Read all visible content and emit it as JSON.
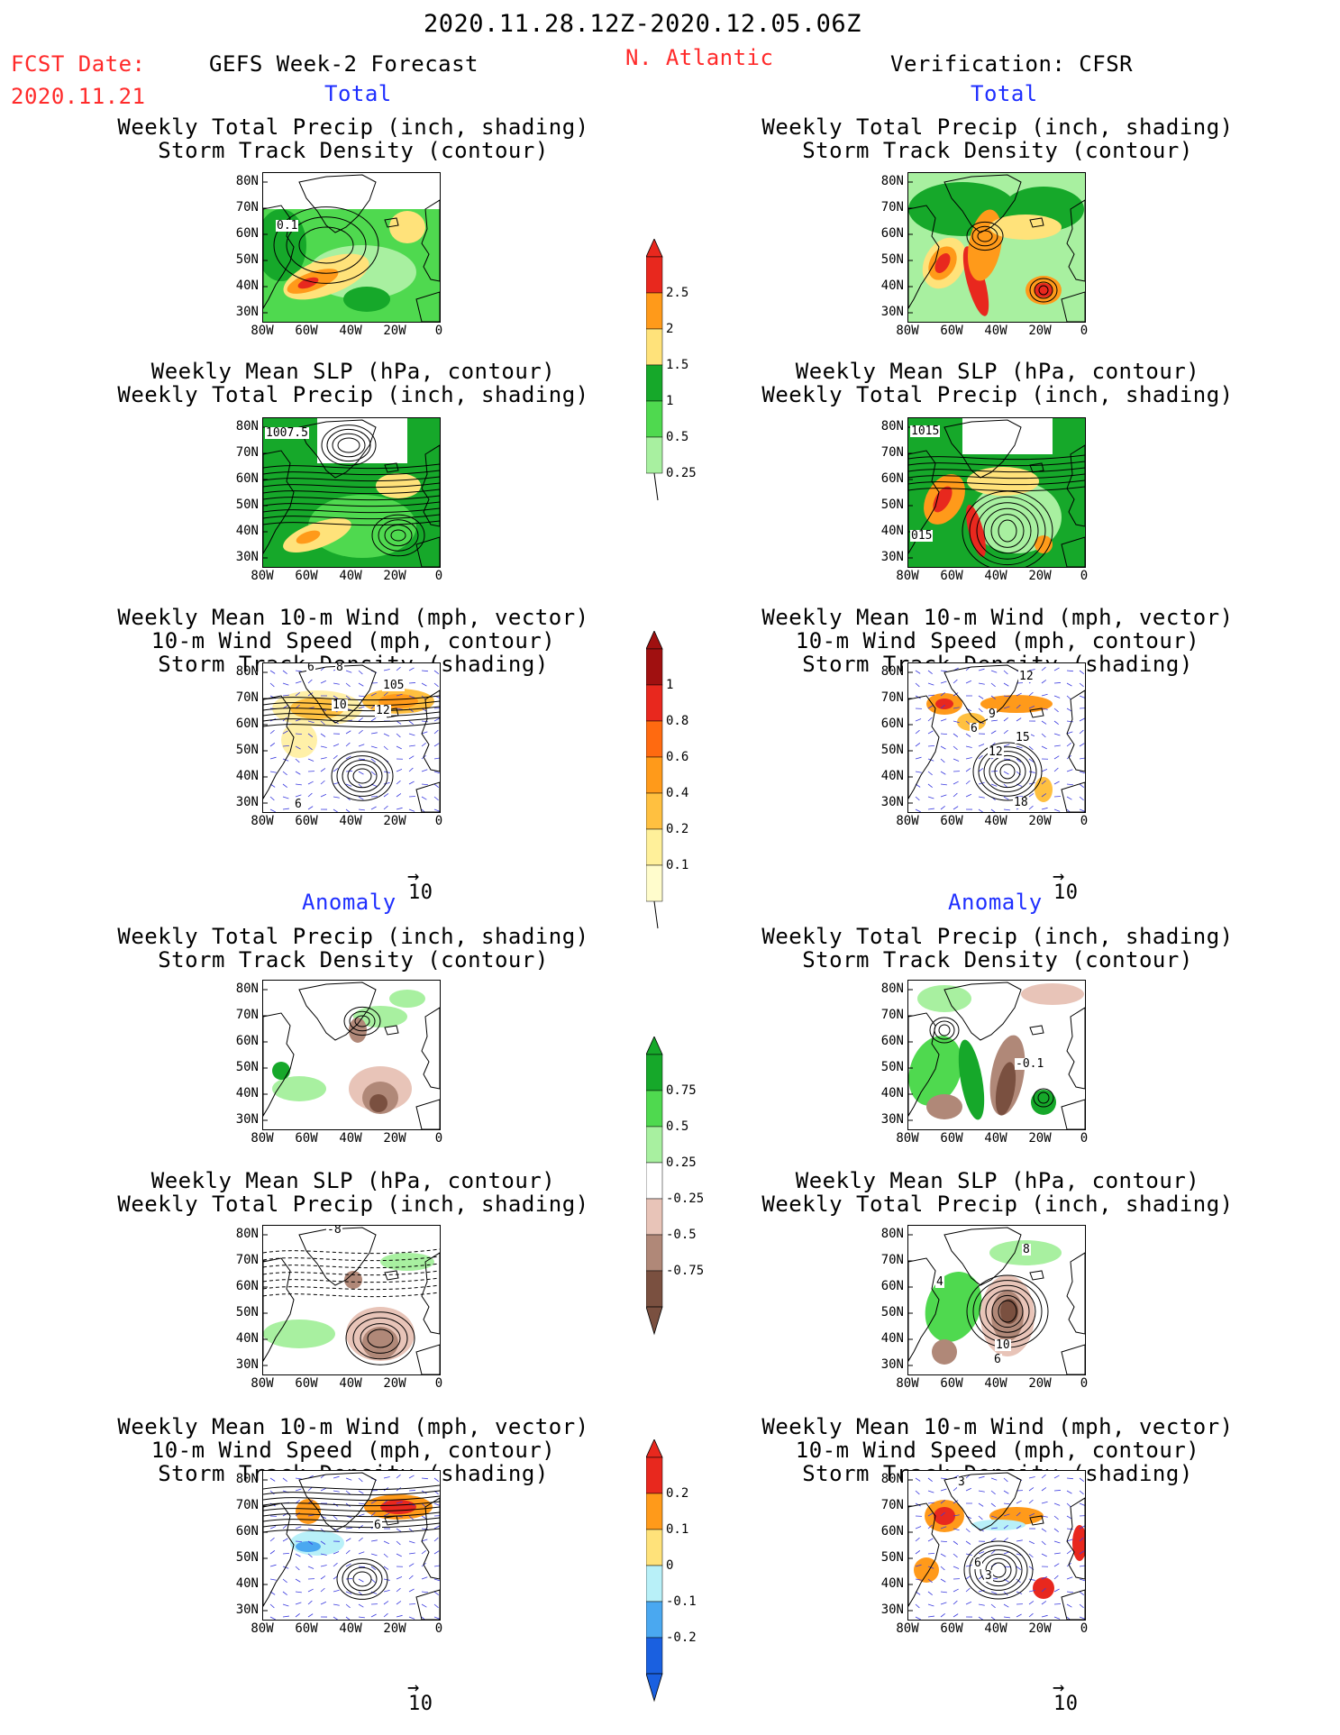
{
  "header": {
    "date_range": "2020.11.28.12Z-2020.12.05.06Z",
    "fcst_date_label": "FCST Date:",
    "fcst_date": "2020.11.21",
    "left_title": "GEFS Week-2 Forecast",
    "region": "N. Atlantic",
    "right_title": "Verification: CFSR"
  },
  "sections": {
    "total": "Total",
    "anomaly": "Anomaly"
  },
  "panel_titles": {
    "precip_storm": [
      "Weekly Total Precip (inch, shading)",
      "Storm Track Density (contour)"
    ],
    "slp_precip": [
      "Weekly Mean SLP (hPa, contour)",
      "Weekly Total Precip (inch, shading)"
    ],
    "wind_storm": [
      "Weekly Mean 10-m Wind (mph, vector)",
      "10-m Wind Speed (mph, contour)",
      "Storm Track Density (shading)"
    ]
  },
  "axes": {
    "lat_ticks": [
      "80N",
      "70N",
      "60N",
      "50N",
      "40N",
      "30N"
    ],
    "lon_ticks": [
      "80W",
      "60W",
      "40W",
      "20W",
      "0"
    ]
  },
  "vector_ref": "10",
  "contour_labels": {
    "l_tot_precip": "0.1",
    "l_tot_slp": "1007.5",
    "r_tot_slp_top": "1015",
    "r_tot_slp_bot": "015",
    "l_tot_wind_a": "6",
    "l_tot_wind_b": "8",
    "l_tot_wind_c": "105",
    "l_tot_wind_d": "10",
    "l_tot_wind_e": "12",
    "l_tot_wind_f": "6",
    "r_tot_wind_a": "12",
    "r_tot_wind_b": "9",
    "r_tot_wind_c": "6",
    "r_tot_wind_d": "15",
    "r_tot_wind_e": "12",
    "r_tot_wind_f": "18",
    "r_anom_precip": "-0.1",
    "l_anom_slp": "-8",
    "r_anom_slp_a": "8",
    "r_anom_slp_b": "4",
    "r_anom_slp_c": "10",
    "r_anom_slp_d": "6",
    "l_anom_wind_a": "6",
    "r_anom_wind_a": "3",
    "r_anom_wind_b": "6",
    "r_anom_wind_c": "3"
  },
  "colorbars": {
    "precip_total": {
      "labels": [
        "2.5",
        "2",
        "1.5",
        "1",
        "0.5",
        "0.25"
      ],
      "colors": [
        "#e8281e",
        "#ff9a1a",
        "#ffe27a",
        "#16a82a",
        "#4fd94f",
        "#a8f0a0"
      ]
    },
    "storm_total": {
      "labels": [
        "1",
        "0.8",
        "0.6",
        "0.4",
        "0.2",
        "0.1"
      ],
      "colors": [
        "#a01010",
        "#e8281e",
        "#ff6a10",
        "#ff9a1a",
        "#ffc040",
        "#fff09a",
        "#fffccc"
      ]
    },
    "precip_anom": {
      "labels": [
        "0.75",
        "0.5",
        "0.25",
        "-0.25",
        "-0.5",
        "-0.75"
      ],
      "colors": [
        "#16a82a",
        "#4fd94f",
        "#a8f0a0",
        "#ffffff",
        "#e8c4b8",
        "#b08878",
        "#7a5040"
      ]
    },
    "storm_anom": {
      "labels": [
        "0.2",
        "0.1",
        "0",
        "-0.1",
        "-0.2"
      ],
      "colors": [
        "#e8281e",
        "#ff9a1a",
        "#ffe27a",
        "#b8f0f8",
        "#4aa8f0",
        "#1a60e0"
      ]
    }
  },
  "palette": {
    "red_text": "#ff2a2a",
    "blue_text": "#1f2fff",
    "land_green": "#16a82a",
    "light_green": "#4fd94f",
    "pale_green": "#a8f0a0",
    "yellow": "#ffe27a",
    "orange": "#ff9a1a",
    "red": "#e8281e",
    "brown_dark": "#7a5040",
    "brown_mid": "#b08878",
    "brown_light": "#e8c4b8",
    "vector_blue": "#3a3adf"
  }
}
